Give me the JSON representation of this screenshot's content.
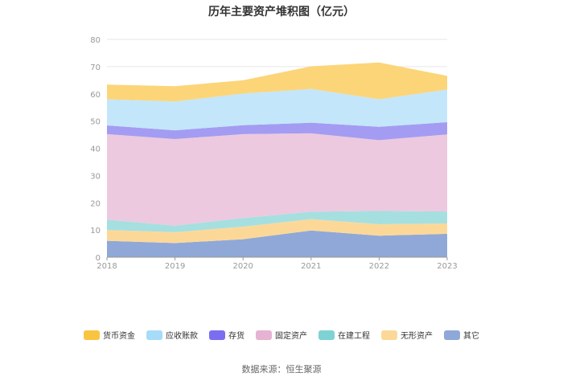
{
  "title": "历年主要资产堆积图（亿元）",
  "source": "数据来源：恒生聚源",
  "chart_data": {
    "type": "area",
    "stacked": true,
    "categories": [
      "2018",
      "2019",
      "2020",
      "2021",
      "2022",
      "2023"
    ],
    "ylim": [
      0,
      80
    ],
    "yticks": [
      "0",
      "10",
      "20",
      "30",
      "40",
      "50",
      "60",
      "70",
      "80"
    ],
    "grid": true,
    "legend_position": "bottom",
    "series": [
      {
        "name": "其它",
        "color": "#8fa8d8",
        "values": [
          6.0,
          5.2,
          6.6,
          9.8,
          7.9,
          8.6
        ]
      },
      {
        "name": "无形资产",
        "color": "#fcd898",
        "values": [
          4.0,
          4.0,
          4.6,
          4.2,
          4.2,
          3.8
        ]
      },
      {
        "name": "在建工程",
        "color": "#a6dfe0",
        "values": [
          3.8,
          2.4,
          3.2,
          2.7,
          4.9,
          4.4
        ]
      },
      {
        "name": "固定资产",
        "color": "#ecc9df",
        "values": [
          31.4,
          31.8,
          30.8,
          28.8,
          26.0,
          28.3
        ]
      },
      {
        "name": "存货",
        "color": "#a49cf2",
        "values": [
          3.2,
          3.2,
          3.3,
          3.9,
          4.9,
          4.5
        ]
      },
      {
        "name": "应收账款",
        "color": "#c3e6fa",
        "values": [
          9.6,
          10.6,
          11.6,
          12.4,
          10.1,
          12.0
        ]
      },
      {
        "name": "货币资金",
        "color": "#fcd579",
        "values": [
          5.4,
          5.6,
          4.9,
          8.3,
          13.5,
          5.0
        ]
      }
    ]
  },
  "legend": [
    {
      "name": "货币资金",
      "color": "#f9c440"
    },
    {
      "name": "应收账款",
      "color": "#a6dcf7"
    },
    {
      "name": "存货",
      "color": "#7b6df0"
    },
    {
      "name": "固定资产",
      "color": "#e6b3d2"
    },
    {
      "name": "在建工程",
      "color": "#7fd2d4"
    },
    {
      "name": "无形资产",
      "color": "#fcd898"
    },
    {
      "name": "其它",
      "color": "#8fa8d8"
    }
  ]
}
